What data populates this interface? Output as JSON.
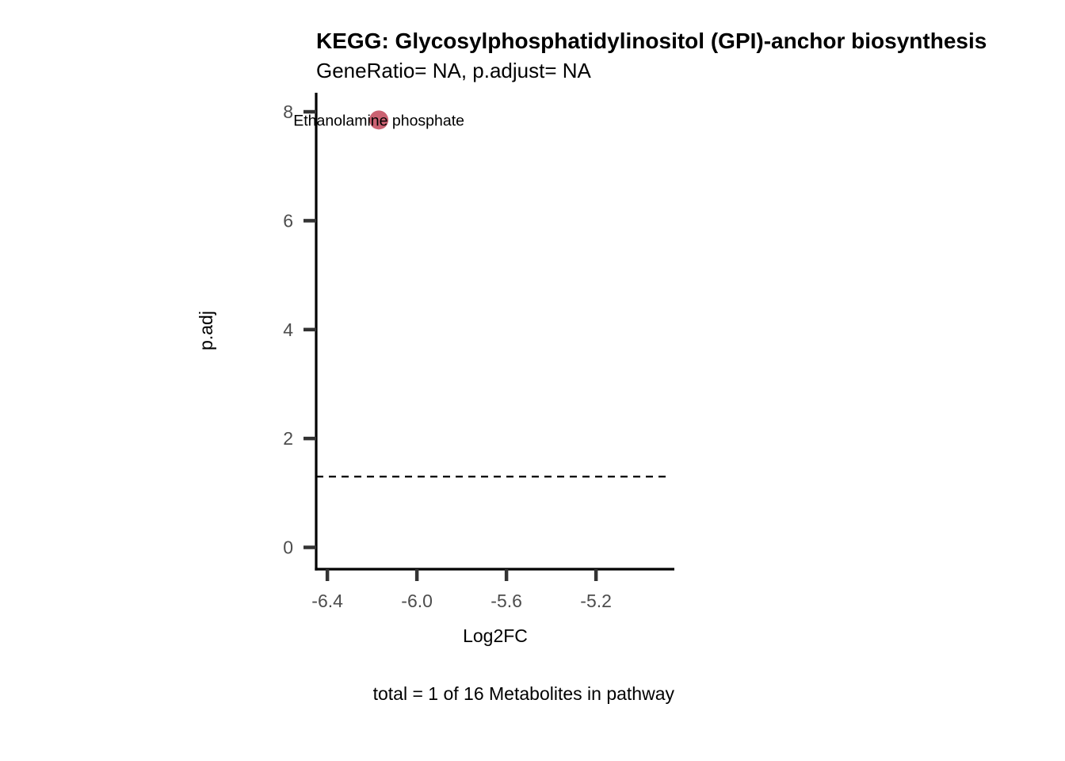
{
  "chart_data": {
    "type": "scatter",
    "title": "KEGG: Glycosylphosphatidylinositol (GPI)-anchor biosynthesis",
    "subtitle": "GeneRatio= NA, p.adjust= NA",
    "xlabel": "Log2FC",
    "ylabel": "p.adj",
    "caption": "total = 1 of 16 Metabolites in pathway",
    "xlim": [
      -6.45,
      -4.85
    ],
    "ylim": [
      -0.4,
      8.35
    ],
    "x_ticks": [
      -6.4,
      -6.0,
      -5.6,
      -5.2
    ],
    "x_tick_labels": [
      "-6.4",
      "-6.0",
      "-5.6",
      "-5.2"
    ],
    "y_ticks": [
      0,
      2,
      4,
      6,
      8
    ],
    "y_tick_labels": [
      "0",
      "2",
      "4",
      "6",
      "8"
    ],
    "threshold_y": 1.3,
    "grid": false,
    "points": [
      {
        "x": -6.17,
        "y": 7.85,
        "label": "Ethanolamine phosphate"
      }
    ],
    "colors": {
      "point": "#c85a6a",
      "axis": "#000000",
      "tick": "#333333",
      "tick_label": "#4d4d4d",
      "threshold": "#000000"
    }
  }
}
